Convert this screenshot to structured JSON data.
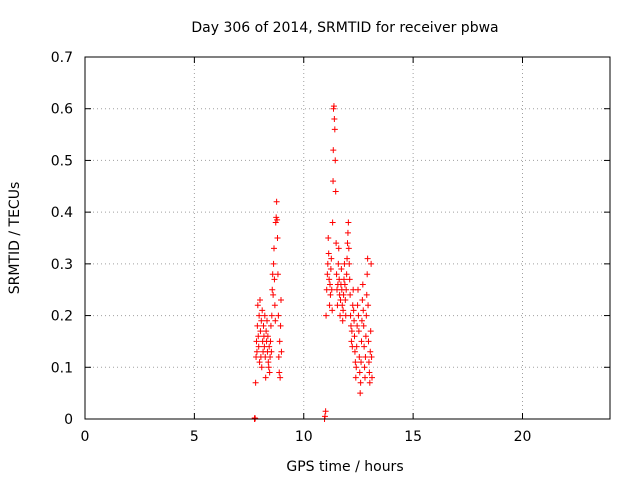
{
  "chart_data": {
    "type": "scatter",
    "title": "Day 306 of 2014, SRMTID for receiver pbwa",
    "xlabel": "GPS time / hours",
    "ylabel": "SRMTID / TECUs",
    "xlim": [
      0,
      24
    ],
    "ylim": [
      0,
      0.7
    ],
    "x_ticks": [
      0,
      5,
      10,
      15,
      20
    ],
    "x_tick_labels": [
      "0",
      "5",
      "10",
      "15",
      "20"
    ],
    "y_ticks": [
      0,
      0.1,
      0.2,
      0.3,
      0.4,
      0.5,
      0.6,
      0.7
    ],
    "y_tick_labels": [
      "0",
      "0.1",
      "0.2",
      "0.3",
      "0.4",
      "0.5",
      "0.6",
      "0.7"
    ],
    "grid": true,
    "marker": "plus",
    "color": "#ff0000",
    "series": [
      {
        "name": "SRMTID",
        "points": [
          [
            7.75,
            0.0
          ],
          [
            7.76,
            0.002
          ],
          [
            7.78,
            0.001
          ],
          [
            7.8,
            0.07
          ],
          [
            7.82,
            0.12
          ],
          [
            7.84,
            0.15
          ],
          [
            7.86,
            0.13
          ],
          [
            7.88,
            0.18
          ],
          [
            7.9,
            0.22
          ],
          [
            7.92,
            0.16
          ],
          [
            7.94,
            0.14
          ],
          [
            7.96,
            0.2
          ],
          [
            7.98,
            0.11
          ],
          [
            8.0,
            0.23
          ],
          [
            8.02,
            0.17
          ],
          [
            8.04,
            0.12
          ],
          [
            8.06,
            0.19
          ],
          [
            8.08,
            0.1
          ],
          [
            8.1,
            0.21
          ],
          [
            8.12,
            0.15
          ],
          [
            8.14,
            0.13
          ],
          [
            8.16,
            0.18
          ],
          [
            8.18,
            0.16
          ],
          [
            8.2,
            0.14
          ],
          [
            8.22,
            0.2
          ],
          [
            8.24,
            0.12
          ],
          [
            8.26,
            0.08
          ],
          [
            8.28,
            0.17
          ],
          [
            8.3,
            0.15
          ],
          [
            8.32,
            0.19
          ],
          [
            8.34,
            0.13
          ],
          [
            8.36,
            0.16
          ],
          [
            8.38,
            0.11
          ],
          [
            8.4,
            0.1
          ],
          [
            8.42,
            0.14
          ],
          [
            8.44,
            0.09
          ],
          [
            8.46,
            0.12
          ],
          [
            8.48,
            0.15
          ],
          [
            8.5,
            0.18
          ],
          [
            8.52,
            0.13
          ],
          [
            8.54,
            0.2
          ],
          [
            8.56,
            0.25
          ],
          [
            8.58,
            0.28
          ],
          [
            8.6,
            0.24
          ],
          [
            8.62,
            0.3
          ],
          [
            8.64,
            0.33
          ],
          [
            8.66,
            0.27
          ],
          [
            8.68,
            0.22
          ],
          [
            8.7,
            0.19
          ],
          [
            8.72,
            0.38
          ],
          [
            8.74,
            0.39
          ],
          [
            8.76,
            0.42
          ],
          [
            8.78,
            0.385
          ],
          [
            8.8,
            0.35
          ],
          [
            8.82,
            0.28
          ],
          [
            8.84,
            0.2
          ],
          [
            8.86,
            0.12
          ],
          [
            8.88,
            0.09
          ],
          [
            8.9,
            0.15
          ],
          [
            8.92,
            0.08
          ],
          [
            8.94,
            0.18
          ],
          [
            8.96,
            0.23
          ],
          [
            8.98,
            0.13
          ],
          [
            10.95,
            0.0
          ],
          [
            10.97,
            0.005
          ],
          [
            11.0,
            0.015
          ],
          [
            11.02,
            0.2
          ],
          [
            11.05,
            0.25
          ],
          [
            11.08,
            0.28
          ],
          [
            11.1,
            0.3
          ],
          [
            11.12,
            0.35
          ],
          [
            11.14,
            0.32
          ],
          [
            11.16,
            0.27
          ],
          [
            11.18,
            0.22
          ],
          [
            11.2,
            0.26
          ],
          [
            11.22,
            0.24
          ],
          [
            11.24,
            0.29
          ],
          [
            11.26,
            0.31
          ],
          [
            11.28,
            0.25
          ],
          [
            11.3,
            0.21
          ],
          [
            11.32,
            0.38
          ],
          [
            11.34,
            0.46
          ],
          [
            11.35,
            0.52
          ],
          [
            11.36,
            0.6
          ],
          [
            11.38,
            0.605
          ],
          [
            11.4,
            0.58
          ],
          [
            11.42,
            0.56
          ],
          [
            11.44,
            0.5
          ],
          [
            11.46,
            0.44
          ],
          [
            11.48,
            0.34
          ],
          [
            11.5,
            0.28
          ],
          [
            11.52,
            0.25
          ],
          [
            11.54,
            0.22
          ],
          [
            11.56,
            0.26
          ],
          [
            11.58,
            0.3
          ],
          [
            11.6,
            0.33
          ],
          [
            11.62,
            0.27
          ],
          [
            11.64,
            0.24
          ],
          [
            11.66,
            0.2
          ],
          [
            11.68,
            0.23
          ],
          [
            11.7,
            0.26
          ],
          [
            11.72,
            0.29
          ],
          [
            11.74,
            0.25
          ],
          [
            11.76,
            0.22
          ],
          [
            11.78,
            0.19
          ],
          [
            11.8,
            0.21
          ],
          [
            11.82,
            0.24
          ],
          [
            11.84,
            0.27
          ],
          [
            11.86,
            0.3
          ],
          [
            11.88,
            0.26
          ],
          [
            11.9,
            0.23
          ],
          [
            11.92,
            0.2
          ],
          [
            11.94,
            0.25
          ],
          [
            11.96,
            0.28
          ],
          [
            11.98,
            0.31
          ],
          [
            12.0,
            0.34
          ],
          [
            12.02,
            0.36
          ],
          [
            12.04,
            0.38
          ],
          [
            12.06,
            0.33
          ],
          [
            12.08,
            0.3
          ],
          [
            12.1,
            0.27
          ],
          [
            12.12,
            0.24
          ],
          [
            12.14,
            0.2
          ],
          [
            12.16,
            0.18
          ],
          [
            12.18,
            0.15
          ],
          [
            12.2,
            0.17
          ],
          [
            12.22,
            0.14
          ],
          [
            12.24,
            0.22
          ],
          [
            12.26,
            0.25
          ],
          [
            12.28,
            0.21
          ],
          [
            12.3,
            0.19
          ],
          [
            12.32,
            0.16
          ],
          [
            12.34,
            0.13
          ],
          [
            12.36,
            0.11
          ],
          [
            12.38,
            0.08
          ],
          [
            12.4,
            0.1
          ],
          [
            12.42,
            0.14
          ],
          [
            12.44,
            0.18
          ],
          [
            12.46,
            0.22
          ],
          [
            12.48,
            0.25
          ],
          [
            12.5,
            0.2
          ],
          [
            12.52,
            0.17
          ],
          [
            12.54,
            0.12
          ],
          [
            12.56,
            0.09
          ],
          [
            12.58,
            0.05
          ],
          [
            12.6,
            0.07
          ],
          [
            12.62,
            0.11
          ],
          [
            12.64,
            0.15
          ],
          [
            12.66,
            0.19
          ],
          [
            12.68,
            0.23
          ],
          [
            12.7,
            0.26
          ],
          [
            12.72,
            0.21
          ],
          [
            12.74,
            0.18
          ],
          [
            12.76,
            0.14
          ],
          [
            12.78,
            0.1
          ],
          [
            12.8,
            0.08
          ],
          [
            12.82,
            0.12
          ],
          [
            12.84,
            0.16
          ],
          [
            12.86,
            0.2
          ],
          [
            12.88,
            0.24
          ],
          [
            12.9,
            0.28
          ],
          [
            12.92,
            0.31
          ],
          [
            12.94,
            0.22
          ],
          [
            12.96,
            0.15
          ],
          [
            12.98,
            0.11
          ],
          [
            13.0,
            0.09
          ],
          [
            13.02,
            0.07
          ],
          [
            13.04,
            0.13
          ],
          [
            13.06,
            0.17
          ],
          [
            13.08,
            0.3
          ],
          [
            13.1,
            0.12
          ],
          [
            13.12,
            0.08
          ]
        ]
      }
    ]
  }
}
